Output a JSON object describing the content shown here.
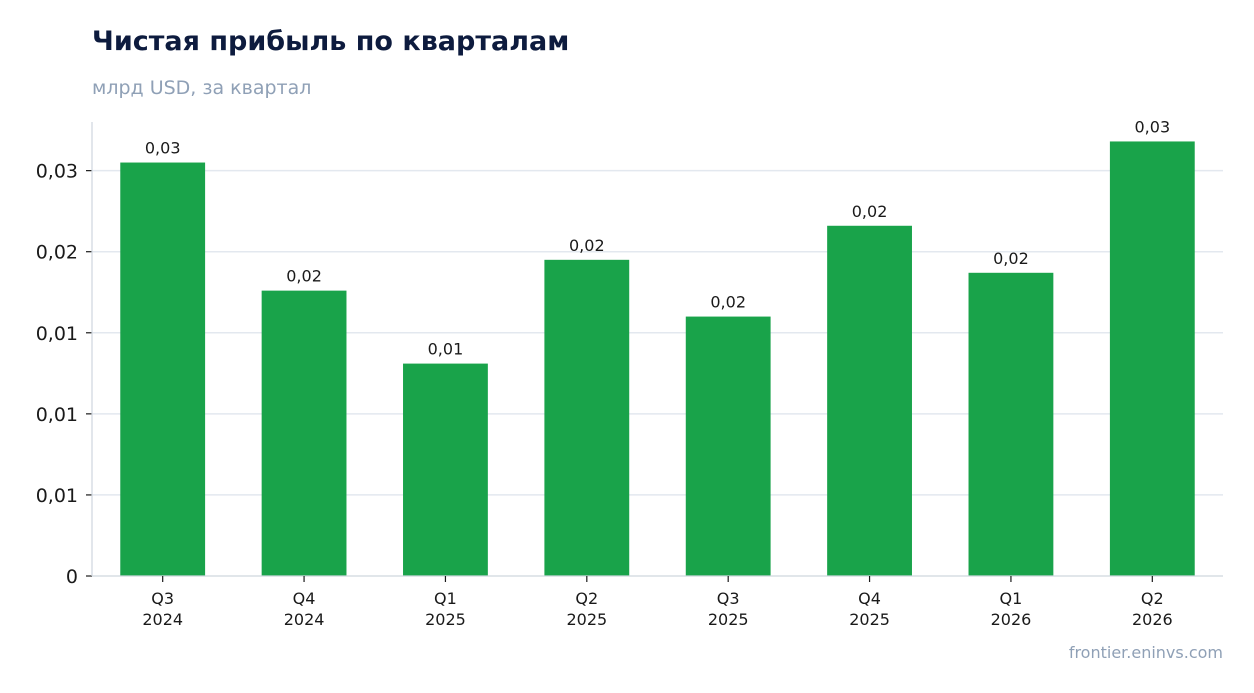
{
  "header": {
    "title": "Чистая прибыль по кварталам",
    "subtitle": "млрд USD, за квартал"
  },
  "footer": {
    "source": "frontier.eninvs.com"
  },
  "colors": {
    "bar": "#19a34a",
    "grid": "#e3e8ef",
    "axis": "#cfd6de"
  },
  "chart_data": {
    "type": "bar",
    "title": "Чистая прибыль по кварталам",
    "subtitle": "млрд USD, за квартал",
    "categories": [
      [
        "Q3",
        "2024"
      ],
      [
        "Q4",
        "2024"
      ],
      [
        "Q1",
        "2025"
      ],
      [
        "Q2",
        "2025"
      ],
      [
        "Q3",
        "2025"
      ],
      [
        "Q4",
        "2025"
      ],
      [
        "Q1",
        "2026"
      ],
      [
        "Q2",
        "2026"
      ]
    ],
    "values": [
      0.0255,
      0.0176,
      0.0131,
      0.0195,
      0.016,
      0.0216,
      0.0187,
      0.0268
    ],
    "data_labels": [
      "0,03",
      "0,02",
      "0,01",
      "0,02",
      "0,02",
      "0,02",
      "0,02",
      "0,03"
    ],
    "yticks": [
      {
        "value": 0.0,
        "label": "0"
      },
      {
        "value": 0.005,
        "label": "0,01"
      },
      {
        "value": 0.01,
        "label": "0,01"
      },
      {
        "value": 0.015,
        "label": "0,01"
      },
      {
        "value": 0.02,
        "label": "0,02"
      },
      {
        "value": 0.025,
        "label": "0,03"
      }
    ],
    "ylim": [
      0,
      0.028
    ],
    "grid": true,
    "legend": "none"
  }
}
